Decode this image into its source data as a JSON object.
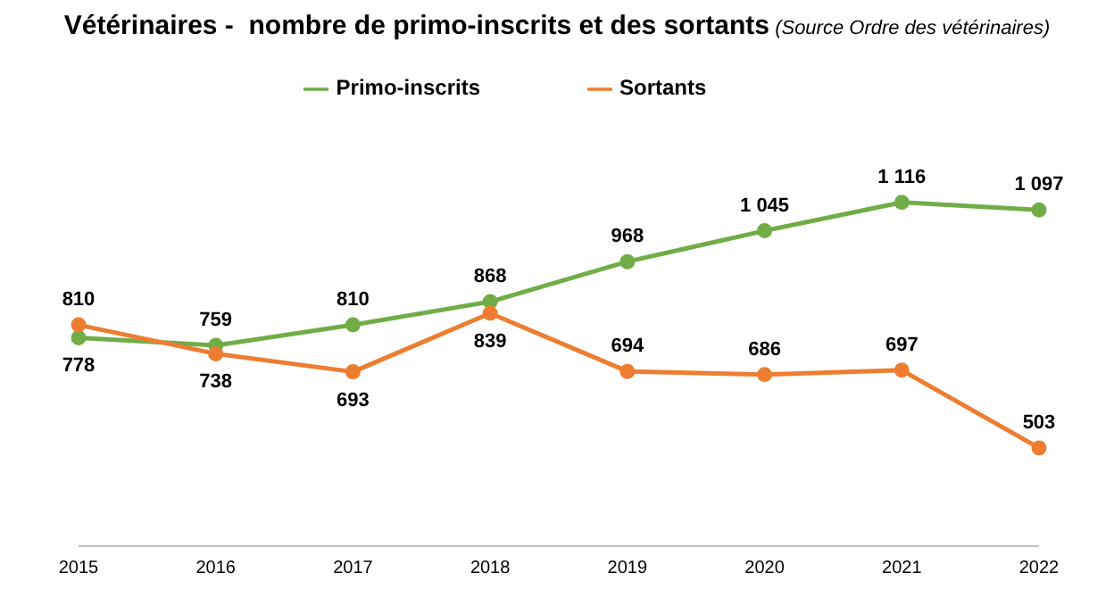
{
  "chart_data": {
    "type": "line",
    "title": "Vétérinaires -  nombre de primo-inscrits et des sortants",
    "subtitle": "(Source Ordre des vétérinaires)",
    "categories": [
      "2015",
      "2016",
      "2017",
      "2018",
      "2019",
      "2020",
      "2021",
      "2022"
    ],
    "series": [
      {
        "name": "Primo-inscrits",
        "color": "#70ad47",
        "values": [
          778,
          759,
          810,
          868,
          968,
          1045,
          1116,
          1097
        ],
        "value_labels": [
          "778",
          "759",
          "810",
          "868",
          "968",
          "1 045",
          "1 116",
          "1 097"
        ]
      },
      {
        "name": "Sortants",
        "color": "#ed7d31",
        "values": [
          810,
          738,
          693,
          839,
          694,
          686,
          697,
          503
        ],
        "value_labels": [
          "810",
          "738",
          "693",
          "839",
          "694",
          "686",
          "697",
          "503"
        ]
      }
    ],
    "legend": "top",
    "marker": "circle",
    "line_style": "solid"
  }
}
